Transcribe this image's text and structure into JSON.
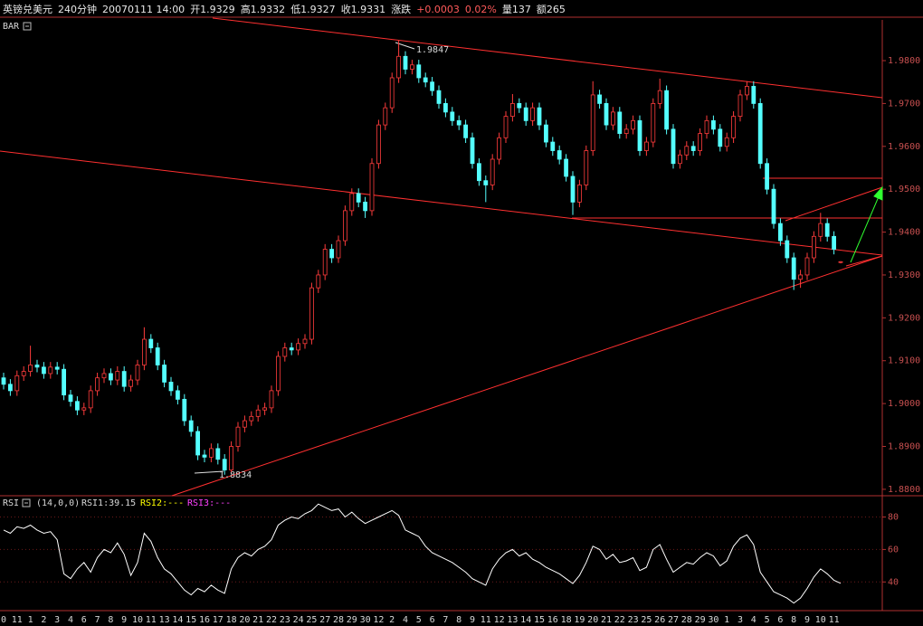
{
  "header": [
    "英镑兑美元",
    "240分钟",
    "20070111 14:00",
    "开1.9329",
    "高1.9332",
    "低1.9327",
    "收1.9331",
    "涨跌",
    "+0.0003",
    "0.02%",
    "量137",
    "额265"
  ],
  "chart_data": [
    {
      "type": "candlestick",
      "title": "BAR",
      "up_color": "#ff3c3c",
      "down_color": "#54ffff",
      "categories": [
        "0",
        null,
        "11",
        null,
        "1",
        null,
        "2",
        null,
        "3",
        null,
        "4",
        null,
        "6",
        null,
        "7",
        null,
        "8",
        null,
        "9",
        null,
        "10",
        null,
        "11",
        null,
        "13",
        null,
        "14",
        null,
        "15",
        null,
        "16",
        null,
        "17",
        null,
        "18",
        null,
        "20",
        null,
        "21",
        null,
        "22",
        null,
        "23",
        null,
        "24",
        null,
        "25",
        null,
        "27",
        null,
        "28",
        null,
        "29",
        null,
        "30",
        null,
        "12",
        null,
        "2",
        null,
        "4",
        null,
        "5",
        null,
        "6",
        null,
        "7",
        null,
        "8",
        null,
        "9",
        null,
        "11",
        null,
        "12",
        null,
        "13",
        null,
        "14",
        null,
        "15",
        null,
        "16",
        null,
        "18",
        null,
        "19",
        null,
        "20",
        null,
        "21",
        null,
        "22",
        null,
        "23",
        null,
        "25",
        null,
        "26",
        null,
        "27",
        null,
        "28",
        null,
        "29",
        null,
        "30",
        null,
        "1",
        null,
        "3",
        null,
        "4",
        null,
        "5",
        null,
        "6",
        null,
        "8",
        null,
        "9",
        null,
        "10",
        null,
        "11",
        null
      ],
      "open": [
        1.906,
        1.9045,
        1.903,
        1.9065,
        1.9075,
        1.909,
        1.9085,
        1.907,
        1.9085,
        1.908,
        1.902,
        1.9005,
        1.8985,
        1.899,
        1.903,
        1.906,
        1.907,
        1.9055,
        1.9075,
        1.904,
        1.9055,
        1.909,
        1.915,
        1.913,
        1.909,
        1.905,
        1.903,
        1.901,
        1.896,
        1.8935,
        1.888,
        1.8875,
        1.8895,
        1.887,
        1.8845,
        1.89,
        1.8945,
        1.896,
        1.897,
        1.8985,
        1.899,
        1.903,
        1.911,
        1.913,
        1.9125,
        1.914,
        1.915,
        1.927,
        1.93,
        1.936,
        1.934,
        1.938,
        1.945,
        1.949,
        1.947,
        1.945,
        1.956,
        1.965,
        1.969,
        1.976,
        1.981,
        1.978,
        1.979,
        1.976,
        1.975,
        1.973,
        1.97,
        1.968,
        1.966,
        1.965,
        1.962,
        1.956,
        1.952,
        1.951,
        1.957,
        1.962,
        1.967,
        1.97,
        1.969,
        1.966,
        1.969,
        1.965,
        1.961,
        1.959,
        1.957,
        1.953,
        1.947,
        1.951,
        1.959,
        1.972,
        1.97,
        1.965,
        1.968,
        1.963,
        1.964,
        1.966,
        1.959,
        1.961,
        1.97,
        1.973,
        1.964,
        1.956,
        1.958,
        1.96,
        1.959,
        1.963,
        1.966,
        1.964,
        1.96,
        1.962,
        1.967,
        1.972,
        1.974,
        1.97,
        1.956,
        1.95,
        1.942,
        1.938,
        1.934,
        1.929,
        1.93,
        1.934,
        1.939,
        1.942,
        1.939,
        1.9329
      ],
      "high": [
        1.9072,
        1.9057,
        1.9077,
        1.9087,
        1.9135,
        1.9102,
        1.9097,
        1.9097,
        1.9097,
        1.9092,
        1.9032,
        1.9017,
        1.9002,
        1.9042,
        1.9072,
        1.9082,
        1.9082,
        1.9087,
        1.9087,
        1.9067,
        1.9102,
        1.9178,
        1.9162,
        1.9142,
        1.9102,
        1.9062,
        1.9042,
        1.9022,
        1.8972,
        1.8947,
        1.8892,
        1.8907,
        1.8907,
        1.8882,
        1.8912,
        1.8957,
        1.8972,
        1.8982,
        1.8997,
        1.9002,
        1.9042,
        1.9122,
        1.9142,
        1.9142,
        1.9152,
        1.9162,
        1.9282,
        1.9312,
        1.9372,
        1.9372,
        1.9392,
        1.9462,
        1.9502,
        1.9502,
        1.9482,
        1.9572,
        1.9662,
        1.9702,
        1.9772,
        1.9847,
        1.9822,
        1.9802,
        1.9802,
        1.9772,
        1.9762,
        1.9742,
        1.9712,
        1.9692,
        1.9672,
        1.9662,
        1.9632,
        1.9572,
        1.9532,
        1.9582,
        1.9632,
        1.9682,
        1.9722,
        1.9712,
        1.9702,
        1.9702,
        1.9702,
        1.9662,
        1.9622,
        1.9602,
        1.9582,
        1.9542,
        1.9522,
        1.9602,
        1.9752,
        1.9732,
        1.9712,
        1.9692,
        1.9692,
        1.9652,
        1.9672,
        1.9672,
        1.9622,
        1.9712,
        1.9758,
        1.9742,
        1.9652,
        1.9592,
        1.9612,
        1.9612,
        1.9642,
        1.9672,
        1.9672,
        1.9652,
        1.9632,
        1.9682,
        1.9732,
        1.9752,
        1.9752,
        1.9712,
        1.9572,
        1.9512,
        1.9432,
        1.9392,
        1.9352,
        1.9312,
        1.9352,
        1.9402,
        1.9445,
        1.9432,
        1.9402,
        1.9332
      ],
      "low": [
        1.9033,
        1.9018,
        1.9018,
        1.9053,
        1.9063,
        1.9073,
        1.9058,
        1.9058,
        1.9068,
        1.9008,
        1.8993,
        1.8973,
        1.8973,
        1.8978,
        1.9018,
        1.9048,
        1.9043,
        1.9043,
        1.9028,
        1.9028,
        1.9043,
        1.9078,
        1.9118,
        1.9078,
        1.9038,
        1.9018,
        1.8998,
        1.8948,
        1.8923,
        1.8868,
        1.8863,
        1.8863,
        1.8858,
        1.8834,
        1.884,
        1.8888,
        1.8933,
        1.8948,
        1.8958,
        1.8973,
        1.8978,
        1.9018,
        1.9098,
        1.9113,
        1.9113,
        1.9128,
        1.9138,
        1.9258,
        1.9288,
        1.9328,
        1.9328,
        1.9368,
        1.9438,
        1.9458,
        1.9433,
        1.9438,
        1.9548,
        1.9638,
        1.9678,
        1.9748,
        1.9768,
        1.9768,
        1.9748,
        1.9738,
        1.9718,
        1.9688,
        1.9668,
        1.9648,
        1.9638,
        1.9608,
        1.9548,
        1.9508,
        1.947,
        1.9498,
        1.9558,
        1.9608,
        1.9658,
        1.9678,
        1.9648,
        1.9648,
        1.9638,
        1.9598,
        1.9578,
        1.9558,
        1.9518,
        1.944,
        1.9458,
        1.9498,
        1.9578,
        1.9688,
        1.9638,
        1.9638,
        1.9618,
        1.9618,
        1.9628,
        1.9578,
        1.9578,
        1.9598,
        1.9688,
        1.9628,
        1.9548,
        1.9548,
        1.9568,
        1.9578,
        1.9578,
        1.9618,
        1.9628,
        1.9588,
        1.9588,
        1.9608,
        1.9658,
        1.9708,
        1.9688,
        1.9548,
        1.9488,
        1.9408,
        1.9368,
        1.9328,
        1.9265,
        1.927,
        1.9288,
        1.9328,
        1.9378,
        1.9378,
        1.9348,
        1.9327
      ],
      "close": [
        1.9045,
        1.903,
        1.9065,
        1.9075,
        1.909,
        1.9085,
        1.907,
        1.9085,
        1.908,
        1.902,
        1.9005,
        1.8985,
        1.899,
        1.903,
        1.906,
        1.907,
        1.9055,
        1.9075,
        1.904,
        1.9055,
        1.909,
        1.915,
        1.913,
        1.909,
        1.905,
        1.903,
        1.901,
        1.896,
        1.8935,
        1.888,
        1.8875,
        1.8895,
        1.887,
        1.8845,
        1.89,
        1.8945,
        1.896,
        1.897,
        1.8985,
        1.899,
        1.903,
        1.911,
        1.913,
        1.9125,
        1.914,
        1.915,
        1.927,
        1.93,
        1.936,
        1.934,
        1.938,
        1.945,
        1.949,
        1.947,
        1.945,
        1.956,
        1.965,
        1.969,
        1.976,
        1.981,
        1.978,
        1.979,
        1.976,
        1.975,
        1.973,
        1.97,
        1.968,
        1.966,
        1.965,
        1.962,
        1.956,
        1.952,
        1.951,
        1.957,
        1.962,
        1.967,
        1.97,
        1.969,
        1.966,
        1.969,
        1.965,
        1.961,
        1.959,
        1.957,
        1.953,
        1.947,
        1.951,
        1.959,
        1.972,
        1.97,
        1.965,
        1.968,
        1.963,
        1.964,
        1.966,
        1.959,
        1.961,
        1.97,
        1.973,
        1.964,
        1.956,
        1.958,
        1.96,
        1.959,
        1.963,
        1.966,
        1.964,
        1.96,
        1.962,
        1.967,
        1.972,
        1.974,
        1.97,
        1.956,
        1.95,
        1.942,
        1.938,
        1.934,
        1.929,
        1.93,
        1.934,
        1.939,
        1.942,
        1.939,
        1.936,
        1.9331
      ],
      "ylim": [
        1.8785,
        1.9895
      ],
      "yticks": [
        {
          "value": 1.88,
          "label": "1.8800"
        },
        {
          "value": 1.89,
          "label": "1.8900"
        },
        {
          "value": 1.9,
          "label": "1.9000"
        },
        {
          "value": 1.91,
          "label": "1.9100"
        },
        {
          "value": 1.92,
          "label": "1.9200"
        },
        {
          "value": 1.93,
          "label": "1.9300"
        },
        {
          "value": 1.94,
          "label": "1.9400"
        },
        {
          "value": 1.95,
          "label": "1.9500"
        },
        {
          "value": 1.96,
          "label": "1.9600"
        },
        {
          "value": 1.97,
          "label": "1.9700"
        },
        {
          "value": 1.98,
          "label": "1.9800"
        }
      ],
      "grid": false,
      "annotations": [
        "1.9847",
        "1.8834"
      ]
    },
    {
      "type": "line",
      "title": "RSI",
      "params": "(14,0,0)",
      "color": "#ffffff",
      "indicators": [
        "RSI1:39.15",
        "RSI2:---",
        "RSI3:---"
      ],
      "values": [
        72,
        70,
        74,
        73,
        75,
        72,
        70,
        71,
        66,
        45,
        42,
        48,
        52,
        46,
        55,
        60,
        58,
        64,
        57,
        44,
        52,
        70,
        65,
        55,
        48,
        45,
        40,
        35,
        32,
        36,
        34,
        38,
        35,
        33,
        48,
        55,
        58,
        56,
        60,
        62,
        66,
        75,
        78,
        80,
        79,
        82,
        84,
        88,
        86,
        84,
        85,
        80,
        83,
        79,
        76,
        78,
        80,
        82,
        84,
        81,
        72,
        70,
        68,
        62,
        58,
        56,
        54,
        52,
        49,
        46,
        42,
        40,
        38,
        48,
        54,
        58,
        60,
        56,
        58,
        54,
        52,
        49,
        47,
        45,
        42,
        39,
        44,
        52,
        62,
        60,
        54,
        57,
        52,
        53,
        55,
        47,
        49,
        60,
        63,
        54,
        46,
        49,
        52,
        51,
        55,
        58,
        56,
        50,
        53,
        62,
        67,
        69,
        63,
        46,
        40,
        34,
        32,
        30,
        27,
        30,
        36,
        43,
        48,
        45,
        41,
        39.15
      ],
      "ylim": [
        24,
        92
      ],
      "yticks": [
        40,
        60,
        80
      ],
      "grid": true
    }
  ]
}
